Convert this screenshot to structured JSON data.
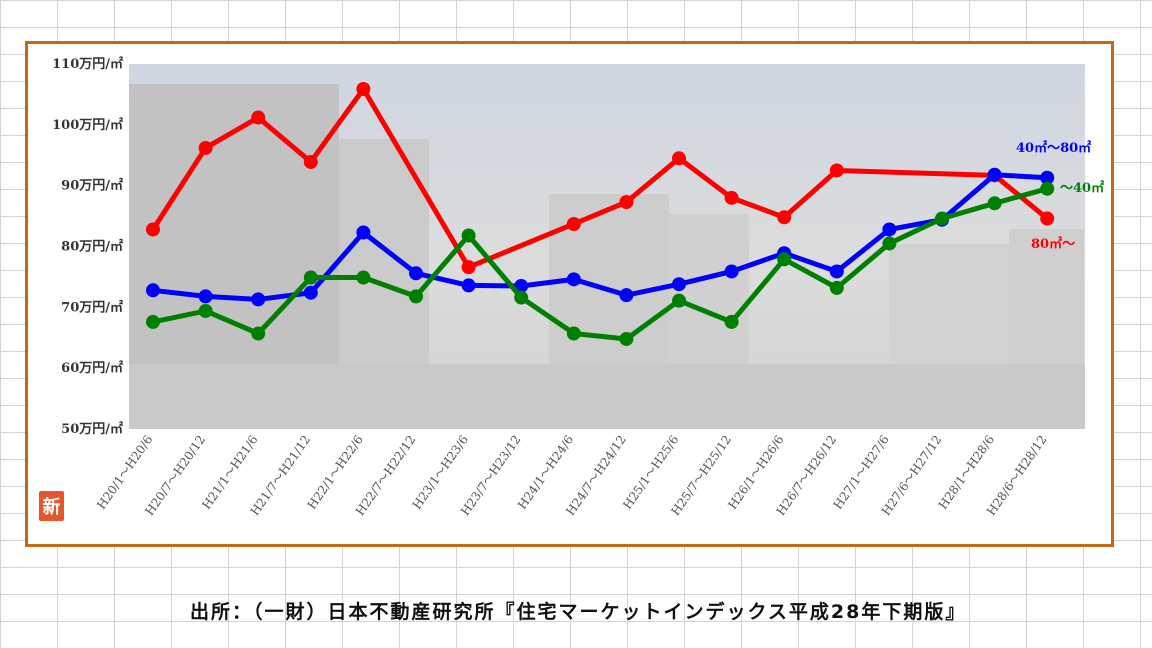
{
  "source_note": "出所：（一財）日本不動産研究所『住宅マーケットインデックス平成28年下期版』",
  "badge": {
    "text": "新",
    "color": "#e4572e"
  },
  "colors": {
    "frame": "#c46a14",
    "plot_bg": "#dcdcdc"
  },
  "chart_data": {
    "type": "line",
    "title": "",
    "xlabel": "",
    "ylabel": "",
    "ylim": [
      50,
      110
    ],
    "yticks": [
      50,
      60,
      70,
      80,
      90,
      100,
      110
    ],
    "ytick_labels": [
      "50万円/㎡",
      "60万円/㎡",
      "70万円/㎡",
      "80万円/㎡",
      "90万円/㎡",
      "100万円/㎡",
      "110万円/㎡"
    ],
    "categories": [
      "H20/1～H20/6",
      "H20/7～H20/12",
      "H21/1～H21/6",
      "H21/7～H21/12",
      "H22/1～H22/6",
      "H22/7～H22/12",
      "H23/1～H23/6",
      "H23/7～H23/12",
      "H24/1～H24/6",
      "H24/7～H24/12",
      "H25/1～H25/6",
      "H25/7～H25/12",
      "H26/1～H26/6",
      "H26/7～H26/12",
      "H27/1～H27/6",
      "H27/6～H27/12",
      "H28/1～H28/6",
      "H28/6～H28/12"
    ],
    "grid": false,
    "legend": "inline labels at right end of each line",
    "series": [
      {
        "name": "80㎡～",
        "color": "#ff0000",
        "values": [
          82.8,
          96.2,
          101.2,
          93.9,
          105.9,
          null,
          76.6,
          null,
          83.7,
          87.3,
          94.5,
          88.0,
          84.8,
          92.5,
          null,
          null,
          91.7,
          84.6
        ]
      },
      {
        "name": "40㎡～80㎡",
        "color": "#0000ff",
        "values": [
          72.8,
          71.8,
          71.3,
          72.4,
          82.3,
          75.6,
          73.6,
          73.5,
          74.6,
          72.0,
          73.8,
          75.9,
          78.9,
          75.9,
          82.8,
          84.4,
          91.8,
          91.3
        ]
      },
      {
        "name": "～40㎡",
        "color": "#008000",
        "values": [
          67.6,
          69.4,
          65.7,
          74.9,
          74.9,
          71.8,
          81.8,
          71.6,
          65.7,
          64.8,
          71.1,
          67.6,
          77.9,
          73.2,
          80.5,
          84.6,
          87.1,
          89.5
        ]
      }
    ]
  }
}
